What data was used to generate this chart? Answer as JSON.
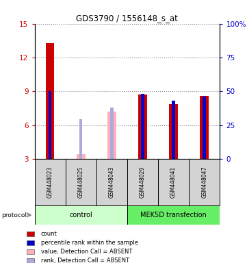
{
  "title": "GDS3790 / 1556148_s_at",
  "samples": [
    "GSM448023",
    "GSM448025",
    "GSM448043",
    "GSM448029",
    "GSM448041",
    "GSM448047"
  ],
  "ylim_left": [
    3,
    15
  ],
  "ylim_right": [
    0,
    100
  ],
  "yticks_left": [
    3,
    6,
    9,
    12,
    15
  ],
  "yticks_right": [
    0,
    25,
    50,
    75,
    100
  ],
  "ytick_labels_right": [
    "0",
    "25",
    "50",
    "75",
    "100%"
  ],
  "red_values": [
    13.3,
    null,
    null,
    8.7,
    7.9,
    8.6
  ],
  "blue_values": [
    9.0,
    null,
    null,
    8.8,
    8.15,
    8.55
  ],
  "pink_values": [
    null,
    3.45,
    7.2,
    null,
    null,
    null
  ],
  "lavender_values": [
    null,
    6.55,
    7.6,
    null,
    null,
    null
  ],
  "red_bar_width": 0.28,
  "blue_bar_width": 0.1,
  "pink_bar_width": 0.28,
  "lavender_bar_width": 0.1,
  "red_color": "#CC0000",
  "blue_color": "#0000CC",
  "pink_color": "#FFB0B8",
  "lavender_color": "#AAAADD",
  "sample_box_color": "#D3D3D3",
  "ctrl_color": "#CCFFCC",
  "mek_color": "#66EE66",
  "legend_items": [
    {
      "label": "count",
      "color": "#CC0000"
    },
    {
      "label": "percentile rank within the sample",
      "color": "#0000CC"
    },
    {
      "label": "value, Detection Call = ABSENT",
      "color": "#FFB0B8"
    },
    {
      "label": "rank, Detection Call = ABSENT",
      "color": "#AAAADD"
    }
  ]
}
